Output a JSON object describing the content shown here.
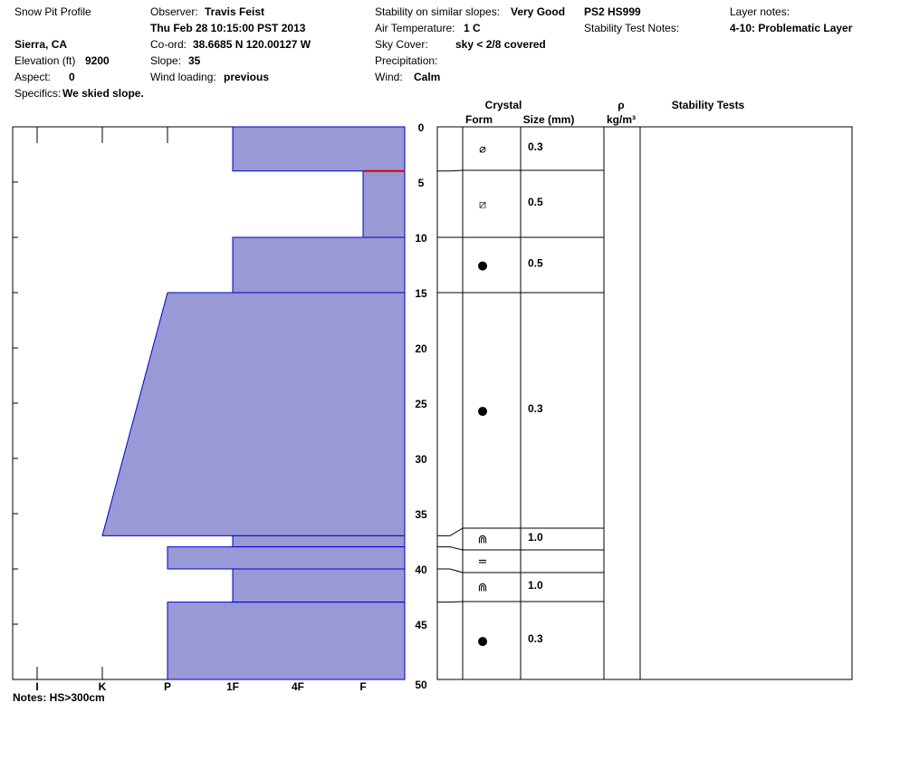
{
  "header": {
    "title": "Snow Pit Profile",
    "location": "Sierra, CA",
    "elevation_label": "Elevation (ft)",
    "elevation": 9200,
    "aspect_label": "Aspect:",
    "aspect": 0,
    "specifics_label": "Specifics:",
    "specifics": "We skied slope.",
    "observer_label": "Observer:",
    "observer": "Travis Feist",
    "date": "Thu Feb 28 10:15:00 PST 2013",
    "coord_label": "Co-ord:",
    "coord": "38.6685 N 120.00127 W",
    "slope_label": "Slope:",
    "slope": 35,
    "wind_loading_label": "Wind loading:",
    "wind_loading": "previous",
    "stability_label": "Stability on similar slopes:",
    "stability": "Very Good",
    "air_temp_label": "Air Temperature:",
    "air_temp": "1 C",
    "sky_label": "Sky Cover:",
    "sky": "sky < 2/8 covered",
    "precip_label": "Precipitation:",
    "wind_label": "Wind:",
    "wind": "Calm",
    "ps": "PS2 HS999",
    "stability_notes_label": "Stability Test Notes:",
    "layer_notes_label": "Layer notes:",
    "layer_notes": "4-10: Problematic Layer"
  },
  "chart_data": {
    "type": "snow-profile",
    "ylim": [
      0,
      50
    ],
    "yticks": [
      0,
      5,
      10,
      15,
      20,
      25,
      30,
      35,
      40,
      45,
      50
    ],
    "xlim": [
      6.375,
      0.361
    ],
    "xticks": [
      {
        "value": 6,
        "label": "I"
      },
      {
        "value": 5,
        "label": "K"
      },
      {
        "value": 4,
        "label": "P"
      },
      {
        "value": 3,
        "label": "1F"
      },
      {
        "value": 2,
        "label": "4F"
      },
      {
        "value": 1,
        "label": "F"
      }
    ],
    "columns": {
      "crystal": "Crystal",
      "form": "Form",
      "size": "Size (mm)",
      "density": "ρ",
      "density_unit": "kg/m³",
      "stability_tests": "Stability Tests"
    },
    "layers": [
      {
        "top": 0,
        "bottom": 4,
        "hardness_top": 3,
        "hardness_bottom": 3,
        "form": "⌀",
        "size": "0.3"
      },
      {
        "top": 4,
        "bottom": 10,
        "hardness_top": 1,
        "hardness_bottom": 1,
        "form": "⧄",
        "size": "0.5"
      },
      {
        "top": 10,
        "bottom": 15,
        "hardness_top": 3,
        "hardness_bottom": 3,
        "form": "●",
        "size": "0.5"
      },
      {
        "top": 15,
        "bottom": 37,
        "hardness_top": 4,
        "hardness_bottom": 5,
        "form": "●",
        "size": "0.3"
      },
      {
        "top": 37,
        "bottom": 38,
        "hardness_top": 3,
        "hardness_bottom": 3,
        "form": "⋒",
        "size": "1.0"
      },
      {
        "top": 38,
        "bottom": 40,
        "hardness_top": 4,
        "hardness_bottom": 4,
        "form": "="
      },
      {
        "top": 40,
        "bottom": 43,
        "hardness_top": 3,
        "hardness_bottom": 3,
        "form": "⋒",
        "size": "1.0"
      },
      {
        "top": 43,
        "bottom": 50,
        "hardness_top": 4,
        "hardness_bottom": 4,
        "form": "●",
        "size": "0.3"
      }
    ],
    "notes": "Notes:  HS>300cm"
  }
}
